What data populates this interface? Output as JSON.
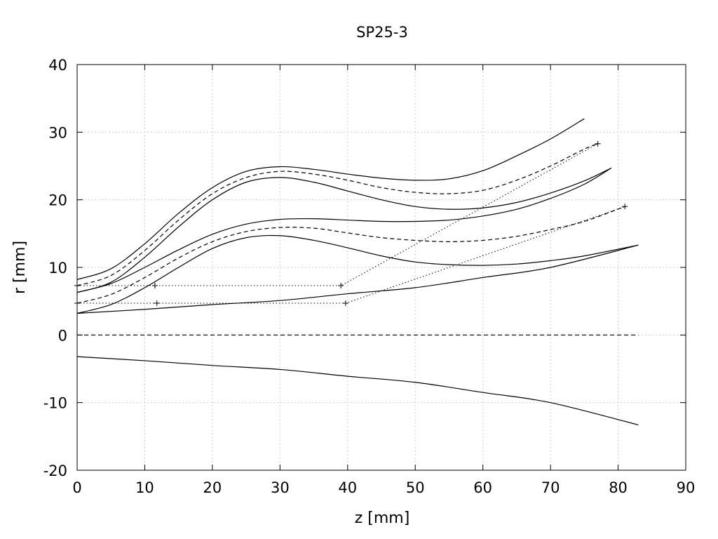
{
  "chart_data": {
    "type": "line",
    "title": "SP25-3",
    "xlabel": "z [mm]",
    "ylabel": "r [mm]",
    "xlim": [
      0,
      90
    ],
    "ylim": [
      -20,
      40
    ],
    "xticks": [
      0,
      10,
      20,
      30,
      40,
      50,
      60,
      70,
      80,
      90
    ],
    "yticks": [
      -20,
      -10,
      0,
      10,
      20,
      30,
      40
    ],
    "grid": true,
    "legend": "none",
    "series": [
      {
        "style": "solid",
        "x": [
          0,
          5,
          10,
          15,
          20,
          25,
          30,
          35,
          40,
          45,
          50,
          55,
          60,
          65,
          70,
          75
        ],
        "y": [
          8.2,
          9.8,
          13.5,
          18.0,
          21.8,
          24.2,
          24.9,
          24.5,
          23.8,
          23.2,
          22.9,
          23.1,
          24.3,
          26.5,
          29.0,
          32.0
        ]
      },
      {
        "style": "dashed",
        "x": [
          0,
          5,
          10,
          15,
          20,
          25,
          30,
          35,
          40,
          45,
          50,
          55,
          60,
          65,
          70,
          75,
          77
        ],
        "y": [
          7.3,
          8.8,
          12.5,
          17.0,
          20.9,
          23.3,
          24.2,
          23.8,
          22.9,
          21.8,
          21.1,
          20.9,
          21.4,
          22.9,
          25.0,
          27.5,
          28.3
        ]
      },
      {
        "style": "solid",
        "x": [
          0,
          5,
          10,
          15,
          20,
          25,
          30,
          35,
          40,
          45,
          50,
          55,
          60,
          65,
          70,
          75,
          79
        ],
        "y": [
          6.3,
          7.8,
          11.5,
          16.0,
          20.0,
          22.6,
          23.3,
          22.6,
          21.3,
          20.0,
          19.0,
          18.6,
          18.8,
          19.6,
          21.0,
          22.8,
          24.7
        ]
      },
      {
        "style": "solid",
        "x": [
          0,
          5,
          10,
          15,
          20,
          25,
          30,
          35,
          40,
          45,
          50,
          55,
          60,
          65,
          70,
          75,
          79
        ],
        "y": [
          6.3,
          7.6,
          10.0,
          12.6,
          14.9,
          16.4,
          17.1,
          17.2,
          17.0,
          16.8,
          16.8,
          17.0,
          17.6,
          18.6,
          20.2,
          22.3,
          24.7
        ]
      },
      {
        "style": "dashed",
        "x": [
          0,
          5,
          10,
          15,
          20,
          25,
          30,
          35,
          40,
          45,
          50,
          55,
          60,
          65,
          70,
          75,
          81
        ],
        "y": [
          4.7,
          6.0,
          8.5,
          11.4,
          13.8,
          15.3,
          15.9,
          15.8,
          15.1,
          14.4,
          14.0,
          13.8,
          14.0,
          14.6,
          15.6,
          16.8,
          19.0
        ]
      },
      {
        "style": "solid",
        "x": [
          0,
          5,
          10,
          15,
          20,
          25,
          30,
          35,
          40,
          45,
          50,
          55,
          60,
          65,
          70,
          75,
          83
        ],
        "y": [
          3.2,
          4.5,
          7.0,
          10.0,
          12.8,
          14.4,
          14.7,
          14.0,
          12.9,
          11.7,
          10.8,
          10.4,
          10.3,
          10.5,
          11.0,
          11.7,
          13.3
        ]
      },
      {
        "style": "solid",
        "x": [
          0,
          10,
          20,
          30,
          40,
          50,
          60,
          70,
          83
        ],
        "y": [
          3.2,
          3.8,
          4.5,
          5.1,
          6.1,
          7.0,
          8.5,
          10.0,
          13.3
        ]
      },
      {
        "style": "dashed",
        "x": [
          0,
          83
        ],
        "y": [
          0,
          0
        ]
      },
      {
        "style": "solid",
        "x": [
          0,
          10,
          20,
          30,
          40,
          50,
          60,
          70,
          83
        ],
        "y": [
          -3.2,
          -3.8,
          -4.5,
          -5.1,
          -6.1,
          -7.0,
          -8.5,
          -10.0,
          -13.3
        ]
      },
      {
        "style": "dotted",
        "marker": "+",
        "x": [
          0,
          11.5,
          39,
          77
        ],
        "y": [
          7.3,
          7.3,
          7.3,
          28.3
        ]
      },
      {
        "style": "dotted",
        "marker": "+",
        "x": [
          0,
          11.8,
          39.7,
          81
        ],
        "y": [
          4.7,
          4.7,
          4.7,
          19.0
        ]
      }
    ]
  }
}
